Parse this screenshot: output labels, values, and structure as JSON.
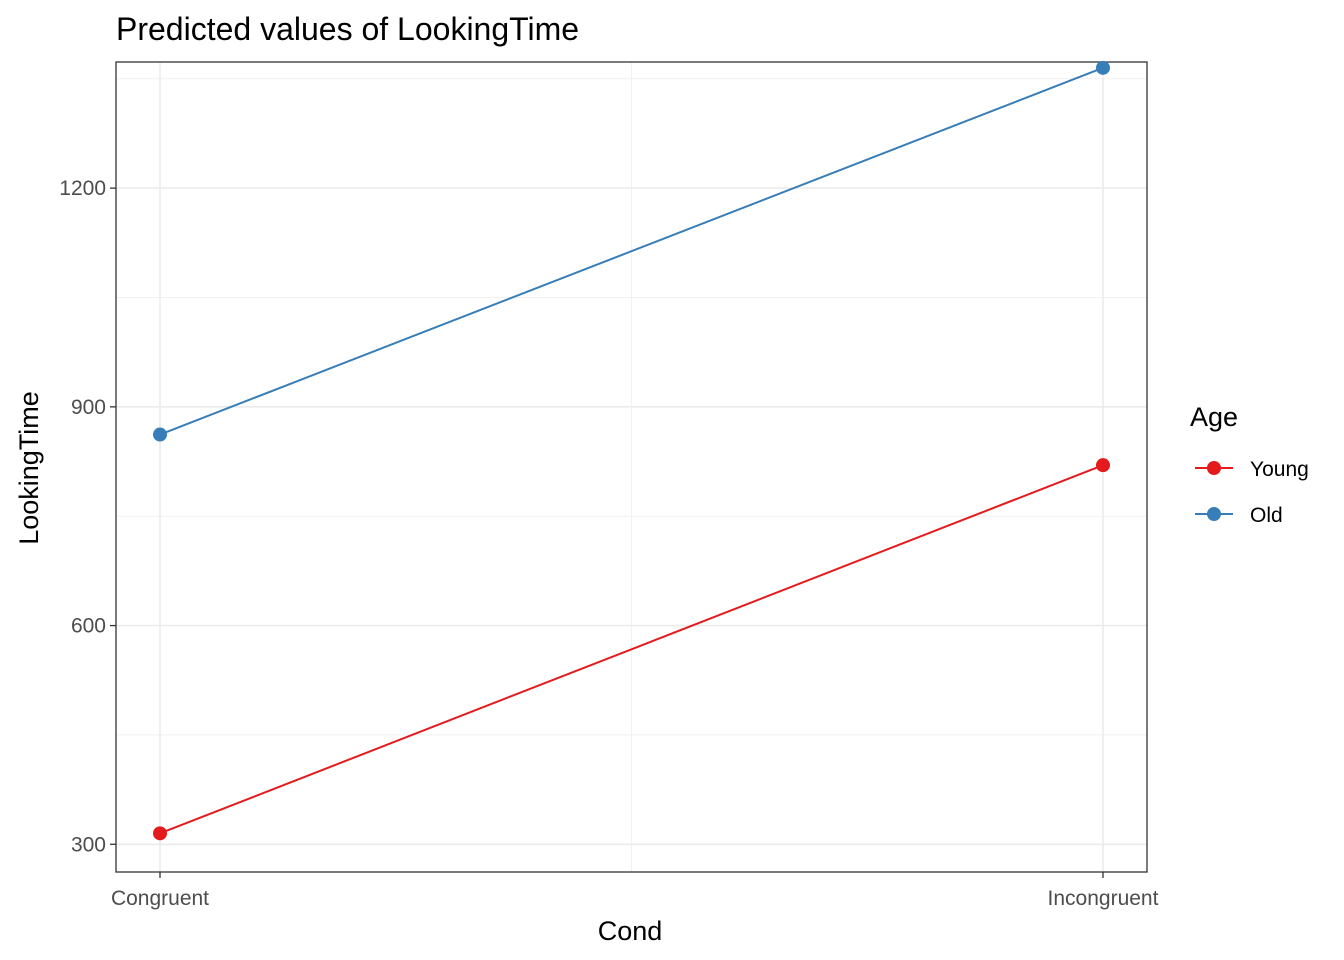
{
  "chart_data": {
    "type": "line",
    "title": "Predicted values of LookingTime",
    "xlabel": "Cond",
    "ylabel": "LookingTime",
    "categories": [
      "Congruent",
      "Incongruent"
    ],
    "yticks": [
      300,
      600,
      900,
      1200
    ],
    "ylim": [
      262,
      1373
    ],
    "grid": true,
    "legend": {
      "title": "Age",
      "placement": "right"
    },
    "series": [
      {
        "name": "Young",
        "color": "#E41A1C",
        "values": [
          315,
          820
        ]
      },
      {
        "name": "Old",
        "color": "#377EB8",
        "values": [
          862,
          1365
        ]
      }
    ]
  }
}
